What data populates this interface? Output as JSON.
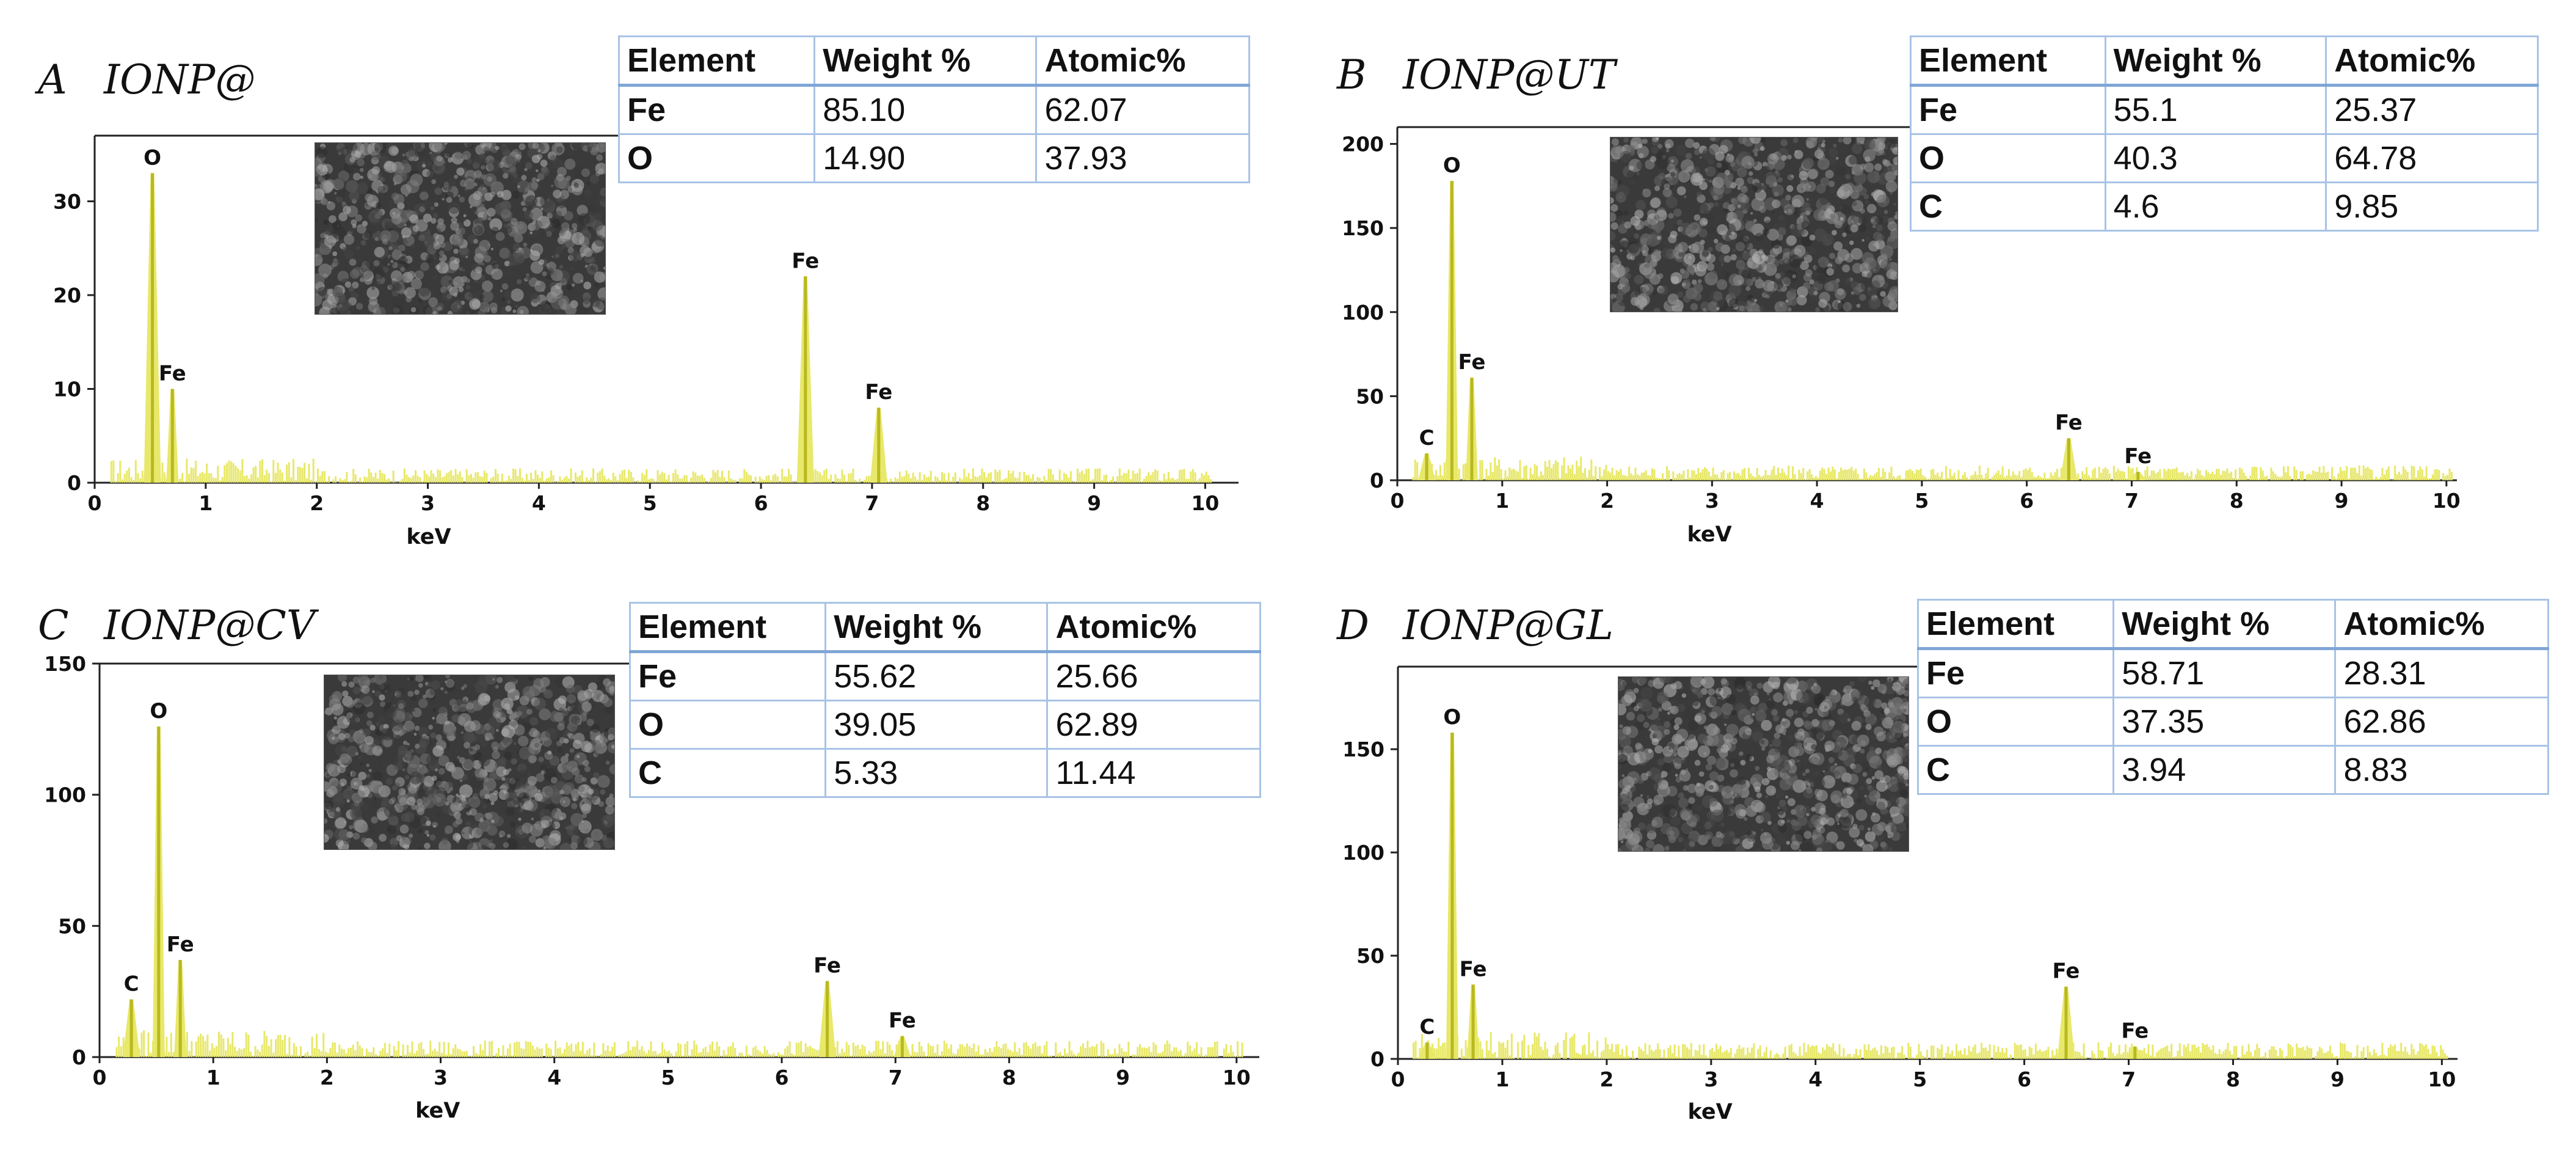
{
  "chart_data": [
    {
      "type": "bar",
      "panel": "A",
      "name": "IONP@",
      "xlabel": "keV",
      "ylabel": "",
      "xlim": [
        0,
        10.3
      ],
      "ylim": [
        0,
        37
      ],
      "xticks": [
        0,
        1,
        2,
        3,
        4,
        5,
        6,
        7,
        8,
        9,
        10
      ],
      "yticks": [
        0,
        10,
        20,
        30
      ],
      "peaks": [
        {
          "label": "O",
          "x": 0.52,
          "y": 33
        },
        {
          "label": "Fe",
          "x": 0.7,
          "y": 10
        },
        {
          "label": "Fe",
          "x": 6.4,
          "y": 22
        },
        {
          "label": "Fe",
          "x": 7.06,
          "y": 8
        }
      ],
      "table": {
        "headers": [
          "Element",
          "Weight %",
          "Atomic%"
        ],
        "rows": [
          [
            "Fe",
            "85.10",
            "62.07"
          ],
          [
            "O",
            "14.90",
            "37.93"
          ]
        ]
      }
    },
    {
      "type": "bar",
      "panel": "B",
      "name": "IONP@UT",
      "xlabel": "keV",
      "ylabel": "",
      "xlim": [
        0,
        10.1
      ],
      "ylim": [
        0,
        210
      ],
      "xticks": [
        0,
        1,
        2,
        3,
        4,
        5,
        6,
        7,
        8,
        9,
        10
      ],
      "yticks": [
        0,
        50,
        100,
        150,
        200
      ],
      "peaks": [
        {
          "label": "C",
          "x": 0.28,
          "y": 16
        },
        {
          "label": "O",
          "x": 0.52,
          "y": 178
        },
        {
          "label": "Fe",
          "x": 0.71,
          "y": 61
        },
        {
          "label": "Fe",
          "x": 6.4,
          "y": 25
        },
        {
          "label": "Fe",
          "x": 7.06,
          "y": 5
        }
      ],
      "table": {
        "headers": [
          "Element",
          "Weight %",
          "Atomic%"
        ],
        "rows": [
          [
            "Fe",
            "55.1",
            "25.37"
          ],
          [
            "O",
            "40.3",
            "64.78"
          ],
          [
            "C",
            "4.6",
            "9.85"
          ]
        ]
      }
    },
    {
      "type": "bar",
      "panel": "C",
      "name": "IONP@CV",
      "xlabel": "keV",
      "ylabel": "",
      "xlim": [
        0,
        10.2
      ],
      "ylim": [
        0,
        150
      ],
      "xticks": [
        0,
        1,
        2,
        3,
        4,
        5,
        6,
        7,
        8,
        9,
        10
      ],
      "yticks": [
        0,
        50,
        100,
        150
      ],
      "peaks": [
        {
          "label": "C",
          "x": 0.28,
          "y": 22
        },
        {
          "label": "O",
          "x": 0.52,
          "y": 126
        },
        {
          "label": "Fe",
          "x": 0.71,
          "y": 37
        },
        {
          "label": "Fe",
          "x": 6.4,
          "y": 29
        },
        {
          "label": "Fe",
          "x": 7.06,
          "y": 8
        }
      ],
      "table": {
        "headers": [
          "Element",
          "Weight %",
          "Atomic%"
        ],
        "rows": [
          [
            "Fe",
            "55.62",
            "25.66"
          ],
          [
            "O",
            "39.05",
            "62.89"
          ],
          [
            "C",
            "5.33",
            "11.44"
          ]
        ]
      }
    },
    {
      "type": "bar",
      "panel": "D",
      "name": "IONP@GL",
      "xlabel": "keV",
      "ylabel": "",
      "xlim": [
        0,
        10.15
      ],
      "ylim": [
        0,
        190
      ],
      "xticks": [
        0,
        1,
        2,
        3,
        4,
        5,
        6,
        7,
        8,
        9,
        10
      ],
      "yticks": [
        0,
        50,
        100,
        150
      ],
      "peaks": [
        {
          "label": "C",
          "x": 0.28,
          "y": 8
        },
        {
          "label": "O",
          "x": 0.52,
          "y": 158
        },
        {
          "label": "Fe",
          "x": 0.72,
          "y": 36
        },
        {
          "label": "Fe",
          "x": 6.4,
          "y": 35
        },
        {
          "label": "Fe",
          "x": 7.06,
          "y": 6
        }
      ],
      "table": {
        "headers": [
          "Element",
          "Weight %",
          "Atomic%"
        ],
        "rows": [
          [
            "Fe",
            "58.71",
            "28.31"
          ],
          [
            "O",
            "37.35",
            "62.86"
          ],
          [
            "C",
            "3.94",
            "8.83"
          ]
        ]
      }
    }
  ],
  "colors": {
    "spectrum": "#e8e86a",
    "spectrum_edge": "#b8b820",
    "axis": "#222222",
    "table_border": "#a8c3e6",
    "sem_image": "#3a3a3a"
  }
}
